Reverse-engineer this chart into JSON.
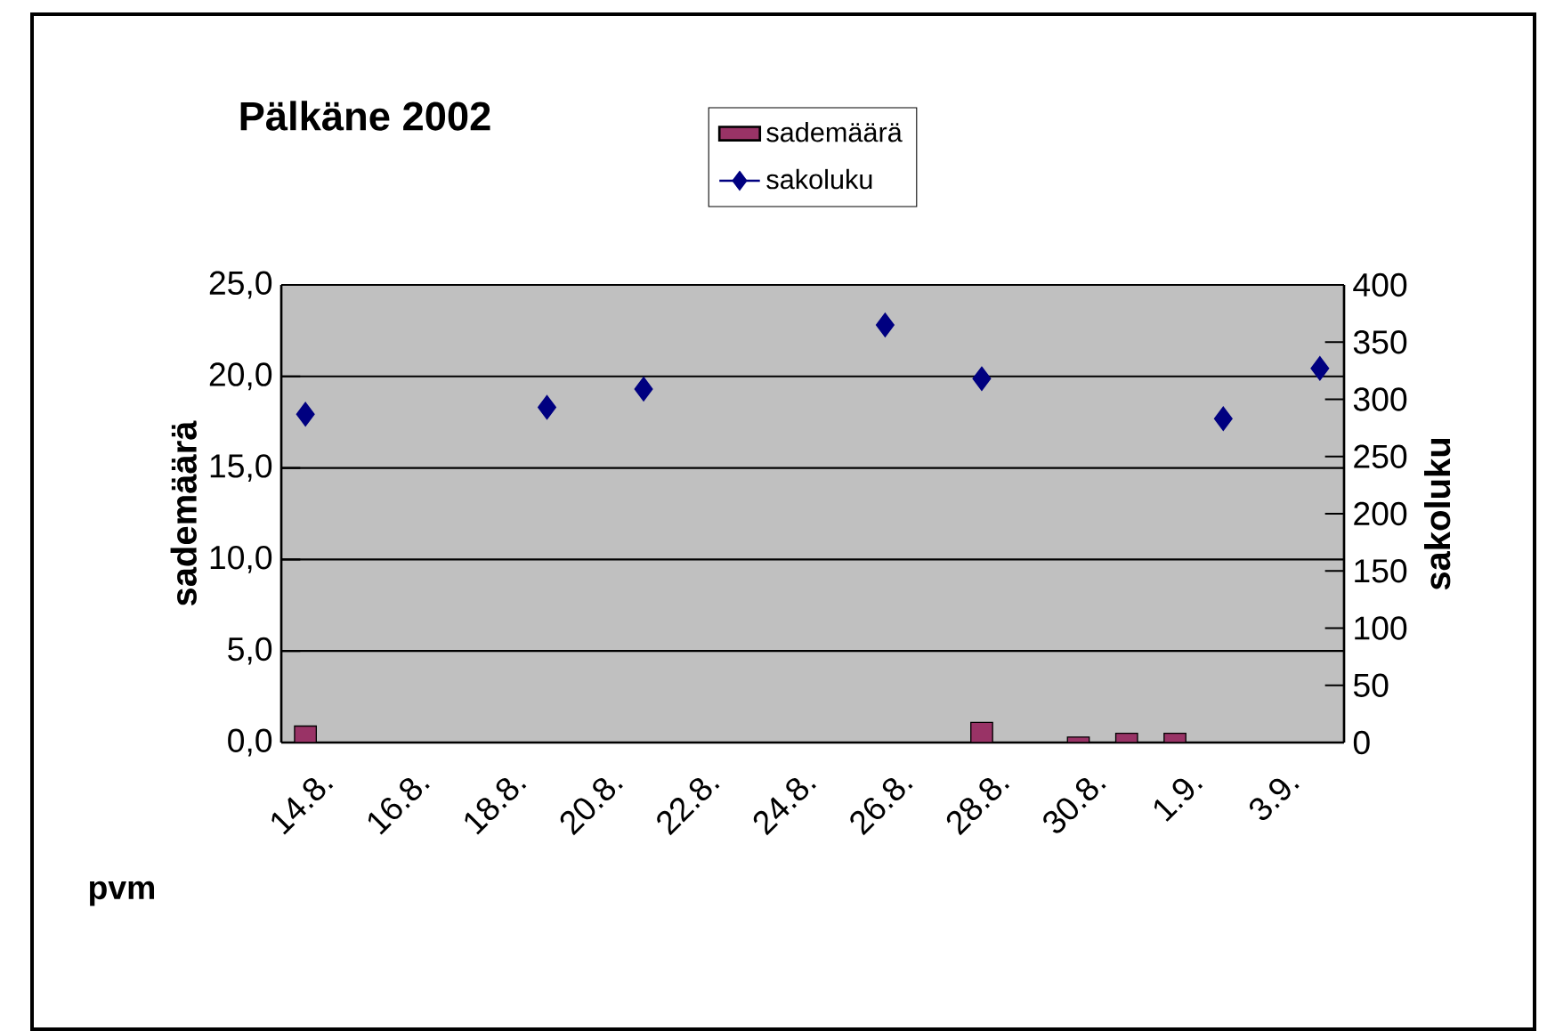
{
  "chart_data": {
    "type": "bar",
    "title": "Pälkäne 2002",
    "xlabel": "pvm",
    "ylabel": "sademäärä",
    "y2label": "sakoluku",
    "categories": [
      "14.8.",
      null,
      "16.8.",
      null,
      "18.8.",
      null,
      "20.8.",
      null,
      "22.8.",
      null,
      "24.8.",
      null,
      "26.8.",
      null,
      "28.8.",
      null,
      "30.8.",
      null,
      "1.9.",
      null,
      "3.9.",
      null
    ],
    "series": [
      {
        "name": "sademäärä",
        "color": "#993366",
        "values": [
          0.9,
          null,
          null,
          null,
          null,
          null,
          null,
          null,
          null,
          null,
          null,
          null,
          null,
          null,
          1.1,
          null,
          0.3,
          0.5,
          0.5,
          null,
          null,
          null
        ]
      },
      {
        "name": "sakoluku",
        "type": "scatter",
        "axis": "y2",
        "color": "#000080",
        "values": [
          287,
          null,
          null,
          null,
          null,
          293,
          null,
          309,
          null,
          null,
          null,
          null,
          365,
          null,
          318,
          null,
          null,
          null,
          null,
          283,
          null,
          327
        ]
      }
    ],
    "ylim": [
      0,
      25
    ],
    "yticks": [
      {
        "value": 0,
        "label": "0,0"
      },
      {
        "value": 5,
        "label": "5,0"
      },
      {
        "value": 10,
        "label": "10,0"
      },
      {
        "value": 15,
        "label": "15,0"
      },
      {
        "value": 20,
        "label": "20,0"
      },
      {
        "value": 25,
        "label": "25,0"
      }
    ],
    "y2lim": [
      0,
      400
    ],
    "y2ticks": [
      0,
      50,
      100,
      150,
      200,
      250,
      300,
      350,
      400
    ],
    "grid": "y",
    "legend": "top",
    "marker": "diamond"
  }
}
